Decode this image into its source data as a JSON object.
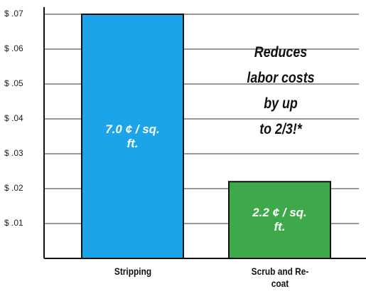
{
  "chart_data": {
    "type": "bar",
    "categories": [
      "Stripping",
      "Scrub and Re-coat"
    ],
    "values": [
      0.07,
      0.022
    ],
    "value_labels": [
      "7.0 ¢ / sq. ft.",
      "2.2 ¢ / sq. ft."
    ],
    "colors": [
      "#1ba4ea",
      "#3ea94a"
    ],
    "ylim": [
      0,
      0.07
    ],
    "yticks": [
      {
        "value": 0.01,
        "label": "$ .01"
      },
      {
        "value": 0.02,
        "label": "$ .02"
      },
      {
        "value": 0.03,
        "label": "$ .03"
      },
      {
        "value": 0.04,
        "label": "$ .04"
      },
      {
        "value": 0.05,
        "label": "$ .05"
      },
      {
        "value": 0.06,
        "label": "$ .06"
      },
      {
        "value": 0.07,
        "label": "$ .07"
      }
    ],
    "grid": true,
    "annotation": [
      "Reduces",
      "labor costs",
      "by up",
      "to 2/3!*"
    ]
  }
}
